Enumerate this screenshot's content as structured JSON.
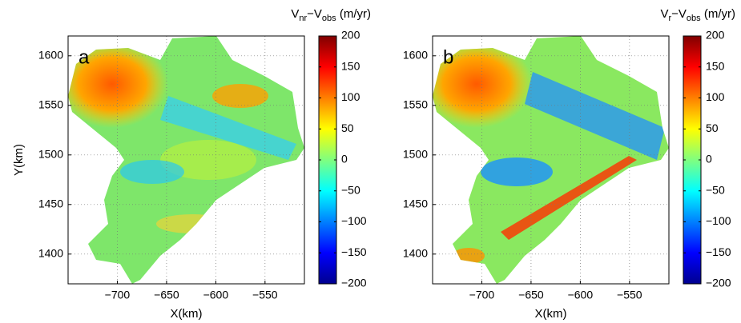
{
  "chart_data": [
    {
      "type": "heatmap",
      "panel_label": "a",
      "xlabel": "X(km)",
      "ylabel": "Y(km)",
      "xlim": [
        -750,
        -510
      ],
      "ylim": [
        1370,
        1620
      ],
      "xticks": [
        {
          "value": -700,
          "label": "−700"
        },
        {
          "value": -650,
          "label": "−650"
        },
        {
          "value": -600,
          "label": "−600"
        },
        {
          "value": -550,
          "label": "−550"
        }
      ],
      "yticks": [
        1400,
        1450,
        1500,
        1550,
        1600
      ],
      "grid": true,
      "colormap": "jet",
      "clim": [
        -200,
        200
      ],
      "colorbar_ticks": [
        {
          "value": -200,
          "label": "−200"
        },
        {
          "value": -150,
          "label": "−150"
        },
        {
          "value": -100,
          "label": "−100"
        },
        {
          "value": -50,
          "label": "−50"
        },
        0,
        50,
        100,
        150,
        200
      ],
      "colorbar_label": [
        "V",
        "nr",
        "−V",
        "obs",
        " (m/yr)"
      ]
    },
    {
      "type": "heatmap",
      "panel_label": "b",
      "xlabel": "X(km)",
      "xlim": [
        -750,
        -510
      ],
      "ylim": [
        1370,
        1620
      ],
      "xticks": [
        {
          "value": -700,
          "label": "−700"
        },
        {
          "value": -650,
          "label": "−650"
        },
        {
          "value": -600,
          "label": "−600"
        },
        {
          "value": -550,
          "label": "−550"
        }
      ],
      "yticks": [
        1400,
        1450,
        1500,
        1550,
        1600
      ],
      "grid": true,
      "colormap": "jet",
      "clim": [
        -200,
        200
      ],
      "colorbar_ticks": [
        {
          "value": -200,
          "label": "−200"
        },
        {
          "value": -150,
          "label": "−150"
        },
        {
          "value": -100,
          "label": "−100"
        },
        {
          "value": -50,
          "label": "−50"
        },
        0,
        50,
        100,
        150,
        200
      ],
      "colorbar_label": [
        "V",
        "r",
        "−V",
        "obs",
        " (m/yr)"
      ]
    }
  ]
}
